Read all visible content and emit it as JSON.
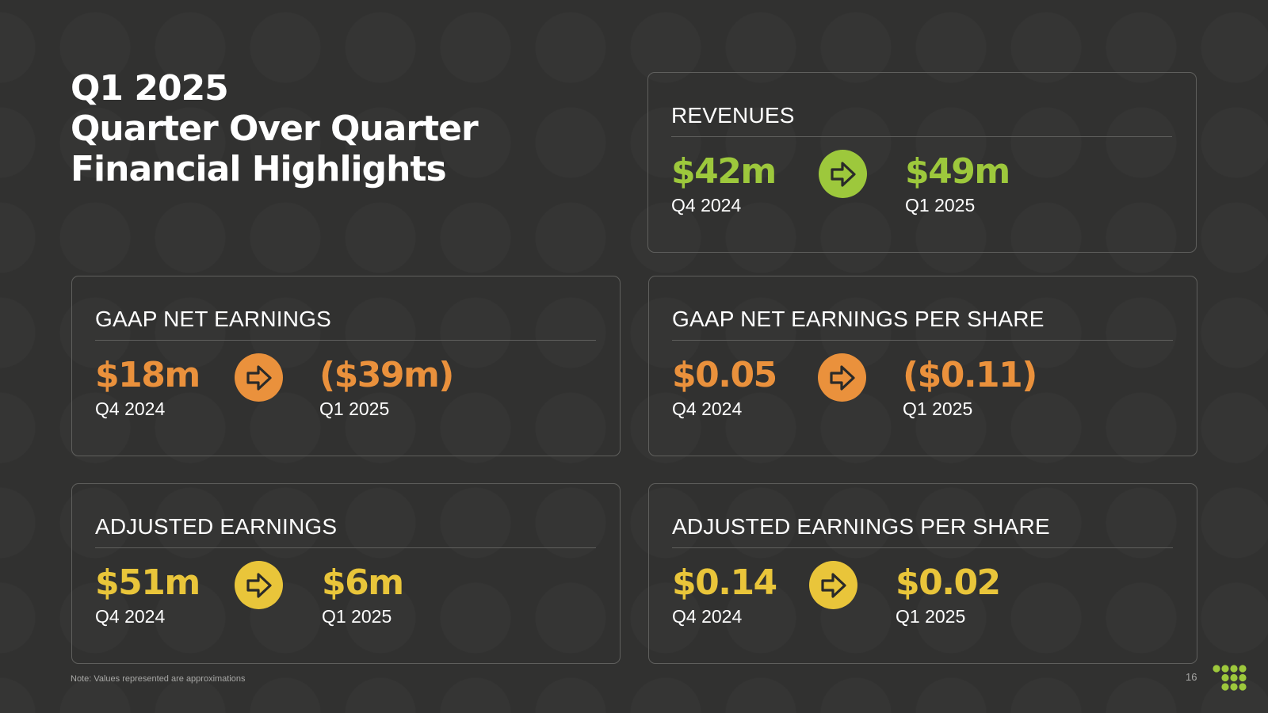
{
  "title": {
    "line1": "Q1 2025",
    "line2": "Quarter Over Quarter",
    "line3": "Financial Highlights"
  },
  "colors": {
    "green": "#9dc83c",
    "orange": "#ea913c",
    "yellow": "#e9c53a",
    "background": "#313130"
  },
  "cards": {
    "revenues": {
      "label": "REVENUES",
      "from_value": "$42m",
      "from_period": "Q4 2024",
      "to_value": "$49m",
      "to_period": "Q1 2025",
      "icon": "arrow-right-icon"
    },
    "gaap_net_earnings": {
      "label": "GAAP NET EARNINGS",
      "from_value": "$18m",
      "from_period": "Q4 2024",
      "to_value": "($39m)",
      "to_period": "Q1 2025",
      "icon": "arrow-right-icon"
    },
    "gaap_eps": {
      "label": "GAAP NET EARNINGS PER SHARE",
      "from_value": "$0.05",
      "from_period": "Q4 2024",
      "to_value": "($0.11)",
      "to_period": "Q1 2025",
      "icon": "arrow-right-icon"
    },
    "adjusted_earnings": {
      "label": "ADJUSTED EARNINGS",
      "from_value": "$51m",
      "from_period": "Q4 2024",
      "to_value": "$6m",
      "to_period": "Q1 2025",
      "icon": "arrow-right-icon"
    },
    "adjusted_eps": {
      "label": "ADJUSTED EARNINGS PER SHARE",
      "from_value": "$0.14",
      "from_period": "Q4 2024",
      "to_value": "$0.02",
      "to_period": "Q1 2025",
      "icon": "arrow-right-icon"
    }
  },
  "footer": {
    "note": "Note: Values represented are approximations",
    "page_number": "16",
    "logo": "brand-dots-logo"
  }
}
